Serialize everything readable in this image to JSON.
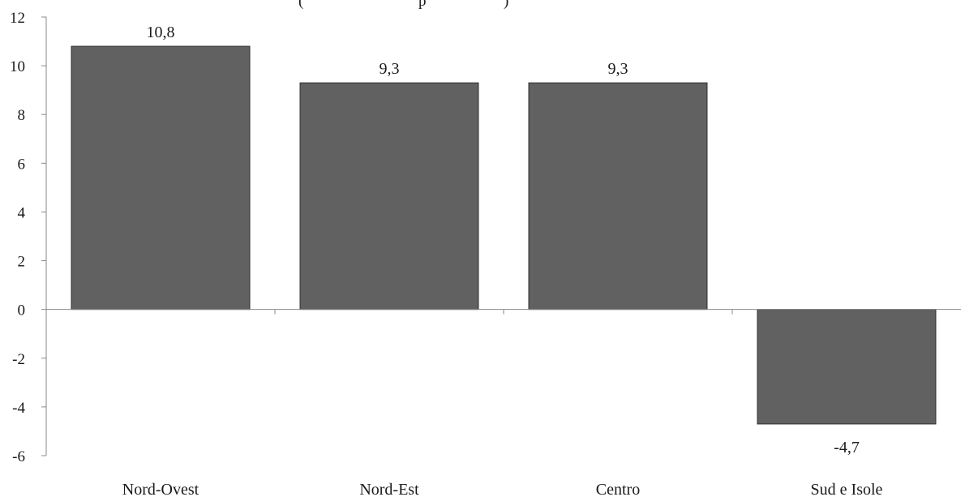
{
  "chart_data": {
    "type": "bar",
    "title_fragment": "(",
    "title_fragment_2": "p",
    "title_fragment_3": ")",
    "categories": [
      "Nord-Ovest",
      "Nord-Est",
      "Centro",
      "Sud e Isole"
    ],
    "values": [
      10.8,
      9.3,
      9.3,
      -4.7
    ],
    "data_labels": [
      "10,8",
      "9,3",
      "9,3",
      "-4,7"
    ],
    "ylim": [
      -6,
      12
    ],
    "yticks": [
      12,
      10,
      8,
      6,
      4,
      2,
      0,
      -2,
      -4,
      -6
    ],
    "ytick_labels": [
      "12",
      "10",
      "8",
      "6",
      "4",
      "2",
      "0",
      "-2",
      "-4",
      "-6"
    ],
    "bar_color": "#616161",
    "bar_edge_color": "#2e2e2e",
    "axis_color": "#8a8a8a",
    "grid": false,
    "legend": "none"
  }
}
